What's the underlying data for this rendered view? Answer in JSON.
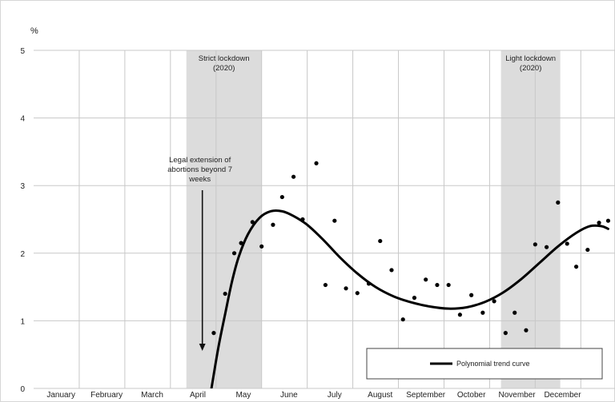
{
  "chart_data": {
    "type": "scatter",
    "y_unit": "%",
    "ylim": [
      0,
      5
    ],
    "y_ticks": [
      0,
      1,
      2,
      3,
      4,
      5
    ],
    "x_categories": [
      "January",
      "February",
      "March",
      "April",
      "May",
      "June",
      "July",
      "August",
      "September",
      "October",
      "November",
      "December"
    ],
    "grid": true,
    "shaded_periods": [
      {
        "label": [
          "Strict lockdown",
          "(2020)"
        ],
        "start": 3.35,
        "end": 5.0
      },
      {
        "label": [
          "Light lockdown",
          "(2020)"
        ],
        "start": 10.25,
        "end": 11.55
      }
    ],
    "annotation": {
      "text": [
        "Legal extension of",
        "abortions beyond 7",
        "weeks"
      ],
      "x": 3.7
    },
    "series": [
      {
        "type": "scatter",
        "points": [
          [
            3.95,
            0.82
          ],
          [
            4.2,
            1.4
          ],
          [
            4.4,
            2.0
          ],
          [
            4.55,
            2.15
          ],
          [
            4.8,
            2.46
          ],
          [
            5.0,
            2.1
          ],
          [
            5.25,
            2.42
          ],
          [
            5.45,
            2.83
          ],
          [
            5.7,
            3.13
          ],
          [
            5.9,
            2.5
          ],
          [
            6.2,
            3.33
          ],
          [
            6.4,
            1.53
          ],
          [
            6.6,
            2.48
          ],
          [
            6.85,
            1.48
          ],
          [
            7.1,
            1.41
          ],
          [
            7.35,
            1.55
          ],
          [
            7.6,
            2.18
          ],
          [
            7.85,
            1.75
          ],
          [
            8.1,
            1.02
          ],
          [
            8.35,
            1.34
          ],
          [
            8.6,
            1.61
          ],
          [
            8.85,
            1.53
          ],
          [
            9.1,
            1.53
          ],
          [
            9.35,
            1.09
          ],
          [
            9.6,
            1.38
          ],
          [
            9.85,
            1.12
          ],
          [
            10.1,
            1.29
          ],
          [
            10.35,
            0.82
          ],
          [
            10.55,
            1.12
          ],
          [
            10.8,
            0.86
          ],
          [
            11.0,
            2.13
          ],
          [
            11.25,
            2.09
          ],
          [
            11.5,
            2.75
          ],
          [
            11.7,
            2.14
          ],
          [
            11.9,
            1.8
          ],
          [
            12.15,
            2.05
          ],
          [
            12.4,
            2.45
          ],
          [
            12.6,
            2.48
          ]
        ]
      },
      {
        "type": "line",
        "name": "Polynomial trend curve",
        "points": [
          [
            3.9,
            0.0
          ],
          [
            4.05,
            0.6
          ],
          [
            4.2,
            1.1
          ],
          [
            4.35,
            1.58
          ],
          [
            4.5,
            1.95
          ],
          [
            4.7,
            2.28
          ],
          [
            4.95,
            2.52
          ],
          [
            5.2,
            2.62
          ],
          [
            5.45,
            2.62
          ],
          [
            5.7,
            2.55
          ],
          [
            6.0,
            2.42
          ],
          [
            6.35,
            2.2
          ],
          [
            6.7,
            1.95
          ],
          [
            7.1,
            1.7
          ],
          [
            7.5,
            1.5
          ],
          [
            7.9,
            1.36
          ],
          [
            8.3,
            1.27
          ],
          [
            8.7,
            1.21
          ],
          [
            9.1,
            1.18
          ],
          [
            9.5,
            1.2
          ],
          [
            9.9,
            1.28
          ],
          [
            10.3,
            1.42
          ],
          [
            10.7,
            1.62
          ],
          [
            11.1,
            1.86
          ],
          [
            11.5,
            2.1
          ],
          [
            11.9,
            2.3
          ],
          [
            12.2,
            2.4
          ],
          [
            12.45,
            2.4
          ],
          [
            12.6,
            2.36
          ]
        ]
      }
    ],
    "legend": {
      "entries": [
        "Polynomial trend curve"
      ],
      "placement": "bottom-right"
    }
  }
}
